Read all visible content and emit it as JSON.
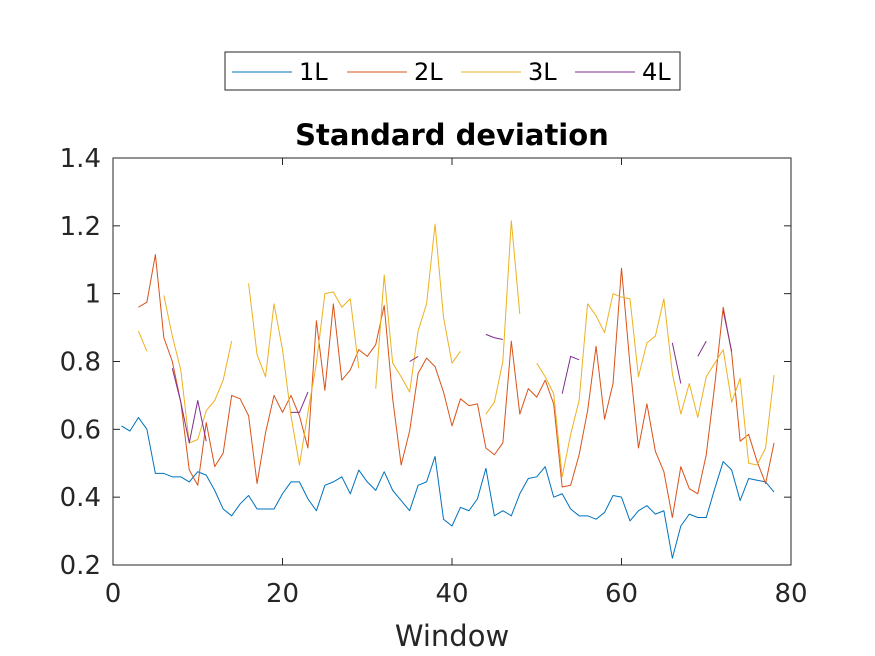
{
  "chart_data": {
    "type": "line",
    "title": "Standard deviation",
    "xlabel": "Window",
    "ylabel": "",
    "xlim": [
      0,
      80
    ],
    "ylim": [
      0.2,
      1.4
    ],
    "xticks": [
      "0",
      "20",
      "40",
      "60",
      "80"
    ],
    "yticks": [
      "0.2",
      "0.4",
      "0.6",
      "0.8",
      "1",
      "1.2",
      "1.4"
    ],
    "grid": false,
    "legend_position": "top-center",
    "series": [
      {
        "name": "1L",
        "color": "#0072BD",
        "values": [
          [
            1,
            0.61
          ],
          [
            2,
            0.595
          ],
          [
            3,
            0.635
          ],
          [
            4,
            0.6
          ],
          [
            5,
            0.47
          ],
          [
            6,
            0.47
          ],
          [
            7,
            0.46
          ],
          [
            8,
            0.46
          ],
          [
            9,
            0.445
          ],
          [
            10,
            0.475
          ],
          [
            11,
            0.465
          ],
          [
            12,
            0.42
          ],
          [
            13,
            0.365
          ],
          [
            14,
            0.345
          ],
          [
            15,
            0.38
          ],
          [
            16,
            0.405
          ],
          [
            17,
            0.365
          ],
          [
            18,
            0.365
          ],
          [
            19,
            0.365
          ],
          [
            20,
            0.41
          ],
          [
            21,
            0.445
          ],
          [
            22,
            0.445
          ],
          [
            23,
            0.395
          ],
          [
            24,
            0.36
          ],
          [
            25,
            0.435
          ],
          [
            26,
            0.445
          ],
          [
            27,
            0.46
          ],
          [
            28,
            0.41
          ],
          [
            29,
            0.48
          ],
          [
            30,
            0.445
          ],
          [
            31,
            0.42
          ],
          [
            32,
            0.475
          ],
          [
            33,
            0.42
          ],
          [
            34,
            0.39
          ],
          [
            35,
            0.36
          ],
          [
            36,
            0.435
          ],
          [
            37,
            0.445
          ],
          [
            38,
            0.52
          ],
          [
            39,
            0.335
          ],
          [
            40,
            0.315
          ],
          [
            41,
            0.37
          ],
          [
            42,
            0.36
          ],
          [
            43,
            0.395
          ],
          [
            44,
            0.485
          ],
          [
            45,
            0.345
          ],
          [
            46,
            0.36
          ],
          [
            47,
            0.345
          ],
          [
            48,
            0.41
          ],
          [
            49,
            0.455
          ],
          [
            50,
            0.46
          ],
          [
            51,
            0.49
          ],
          [
            52,
            0.4
          ],
          [
            53,
            0.41
          ],
          [
            54,
            0.365
          ],
          [
            55,
            0.345
          ],
          [
            56,
            0.345
          ],
          [
            57,
            0.335
          ],
          [
            58,
            0.355
          ],
          [
            59,
            0.405
          ],
          [
            60,
            0.4
          ],
          [
            61,
            0.33
          ],
          [
            62,
            0.36
          ],
          [
            63,
            0.375
          ],
          [
            64,
            0.35
          ],
          [
            65,
            0.36
          ],
          [
            66,
            0.22
          ],
          [
            67,
            0.315
          ],
          [
            68,
            0.35
          ],
          [
            69,
            0.34
          ],
          [
            70,
            0.34
          ],
          [
            71,
            0.425
          ],
          [
            72,
            0.505
          ],
          [
            73,
            0.48
          ],
          [
            74,
            0.39
          ],
          [
            75,
            0.455
          ],
          [
            76,
            0.45
          ],
          [
            77,
            0.445
          ],
          [
            78,
            0.415
          ]
        ]
      },
      {
        "name": "2L",
        "color": "#D95319",
        "values": [
          [
            3,
            0.96
          ],
          [
            4,
            0.975
          ],
          [
            5,
            1.115
          ],
          [
            6,
            0.87
          ],
          [
            7,
            0.8
          ],
          [
            8,
            0.68
          ],
          [
            9,
            0.48
          ],
          [
            10,
            0.435
          ],
          [
            11,
            0.62
          ],
          [
            12,
            0.49
          ],
          [
            13,
            0.53
          ],
          [
            14,
            0.7
          ],
          [
            15,
            0.69
          ],
          [
            16,
            0.64
          ],
          [
            17,
            0.44
          ],
          [
            18,
            0.59
          ],
          [
            19,
            0.7
          ],
          [
            20,
            0.65
          ],
          [
            21,
            0.7
          ],
          [
            22,
            0.64
          ],
          [
            23,
            0.545
          ],
          [
            24,
            0.92
          ],
          [
            25,
            0.715
          ],
          [
            26,
            0.97
          ],
          [
            27,
            0.745
          ],
          [
            28,
            0.775
          ],
          [
            29,
            0.835
          ],
          [
            30,
            0.815
          ],
          [
            31,
            0.85
          ],
          [
            32,
            0.965
          ],
          [
            33,
            0.69
          ],
          [
            34,
            0.495
          ],
          [
            35,
            0.595
          ],
          [
            36,
            0.765
          ],
          [
            37,
            0.81
          ],
          [
            38,
            0.785
          ],
          [
            39,
            0.71
          ],
          [
            40,
            0.61
          ],
          [
            41,
            0.69
          ],
          [
            42,
            0.67
          ],
          [
            43,
            0.675
          ],
          [
            44,
            0.545
          ],
          [
            45,
            0.525
          ],
          [
            46,
            0.56
          ],
          [
            47,
            0.86
          ],
          [
            48,
            0.645
          ],
          [
            49,
            0.72
          ],
          [
            50,
            0.695
          ],
          [
            51,
            0.745
          ],
          [
            52,
            0.675
          ],
          [
            53,
            0.43
          ],
          [
            54,
            0.435
          ],
          [
            55,
            0.525
          ],
          [
            56,
            0.655
          ],
          [
            57,
            0.845
          ],
          [
            58,
            0.63
          ],
          [
            59,
            0.735
          ],
          [
            60,
            1.075
          ],
          [
            61,
            0.79
          ],
          [
            62,
            0.545
          ],
          [
            63,
            0.675
          ],
          [
            64,
            0.535
          ],
          [
            65,
            0.475
          ],
          [
            66,
            0.34
          ],
          [
            67,
            0.49
          ],
          [
            68,
            0.425
          ],
          [
            69,
            0.41
          ],
          [
            70,
            0.525
          ],
          [
            71,
            0.73
          ],
          [
            72,
            0.96
          ],
          [
            73,
            0.825
          ],
          [
            74,
            0.565
          ],
          [
            75,
            0.585
          ],
          [
            76,
            0.505
          ],
          [
            77,
            0.44
          ],
          [
            78,
            0.56
          ]
        ]
      },
      {
        "name": "3L",
        "color": "#EDB120",
        "values": [
          [
            3,
            0.89
          ],
          [
            4,
            0.83
          ],
          [
            5,
            null
          ],
          [
            6,
            0.995
          ],
          [
            7,
            0.875
          ],
          [
            8,
            0.775
          ],
          [
            9,
            0.56
          ],
          [
            10,
            0.57
          ],
          [
            11,
            0.655
          ],
          [
            12,
            0.685
          ],
          [
            13,
            0.745
          ],
          [
            14,
            0.86
          ],
          [
            15,
            null
          ],
          [
            16,
            1.03
          ],
          [
            17,
            0.82
          ],
          [
            18,
            0.755
          ],
          [
            19,
            0.97
          ],
          [
            20,
            0.835
          ],
          [
            21,
            0.64
          ],
          [
            22,
            0.495
          ],
          [
            23,
            0.65
          ],
          [
            24,
            0.795
          ],
          [
            25,
            1.0
          ],
          [
            26,
            1.005
          ],
          [
            27,
            0.96
          ],
          [
            28,
            0.985
          ],
          [
            29,
            0.78
          ],
          [
            30,
            null
          ],
          [
            31,
            0.72
          ],
          [
            32,
            1.055
          ],
          [
            33,
            0.795
          ],
          [
            34,
            0.755
          ],
          [
            35,
            0.71
          ],
          [
            36,
            0.89
          ],
          [
            37,
            0.97
          ],
          [
            38,
            1.205
          ],
          [
            39,
            0.93
          ],
          [
            40,
            0.795
          ],
          [
            41,
            0.83
          ],
          [
            42,
            null
          ],
          [
            43,
            null
          ],
          [
            44,
            0.645
          ],
          [
            45,
            0.68
          ],
          [
            46,
            0.8
          ],
          [
            47,
            1.215
          ],
          [
            48,
            0.94
          ],
          [
            49,
            null
          ],
          [
            50,
            0.795
          ],
          [
            51,
            0.755
          ],
          [
            52,
            0.705
          ],
          [
            53,
            0.46
          ],
          [
            54,
            0.585
          ],
          [
            55,
            0.685
          ],
          [
            56,
            0.97
          ],
          [
            57,
            0.935
          ],
          [
            58,
            0.885
          ],
          [
            59,
            1.0
          ],
          [
            60,
            0.99
          ],
          [
            61,
            0.985
          ],
          [
            62,
            0.755
          ],
          [
            63,
            0.855
          ],
          [
            64,
            0.875
          ],
          [
            65,
            0.985
          ],
          [
            66,
            0.765
          ],
          [
            67,
            0.645
          ],
          [
            68,
            0.735
          ],
          [
            69,
            0.635
          ],
          [
            70,
            0.755
          ],
          [
            71,
            0.795
          ],
          [
            72,
            0.835
          ],
          [
            73,
            0.68
          ],
          [
            74,
            0.75
          ],
          [
            75,
            0.5
          ],
          [
            76,
            0.495
          ],
          [
            77,
            0.545
          ],
          [
            78,
            0.76
          ]
        ]
      },
      {
        "name": "4L",
        "color": "#7E2F8E",
        "values": [
          [
            7,
            0.78
          ],
          [
            8,
            0.68
          ],
          [
            9,
            0.56
          ],
          [
            10,
            0.685
          ],
          [
            11,
            0.565
          ],
          [
            12,
            null
          ],
          [
            20,
            null
          ],
          [
            21,
            0.65
          ],
          [
            22,
            0.65
          ],
          [
            23,
            0.71
          ],
          [
            24,
            null
          ],
          [
            35,
            0.8
          ],
          [
            36,
            0.815
          ],
          [
            37,
            null
          ],
          [
            44,
            0.88
          ],
          [
            45,
            0.87
          ],
          [
            46,
            0.865
          ],
          [
            47,
            null
          ],
          [
            53,
            0.705
          ],
          [
            54,
            0.815
          ],
          [
            55,
            0.805
          ],
          [
            56,
            null
          ],
          [
            66,
            0.855
          ],
          [
            67,
            0.735
          ],
          [
            68,
            null
          ],
          [
            69,
            0.815
          ],
          [
            70,
            0.86
          ],
          [
            71,
            null
          ],
          [
            72,
            0.95
          ],
          [
            73,
            0.83
          ]
        ]
      }
    ]
  }
}
